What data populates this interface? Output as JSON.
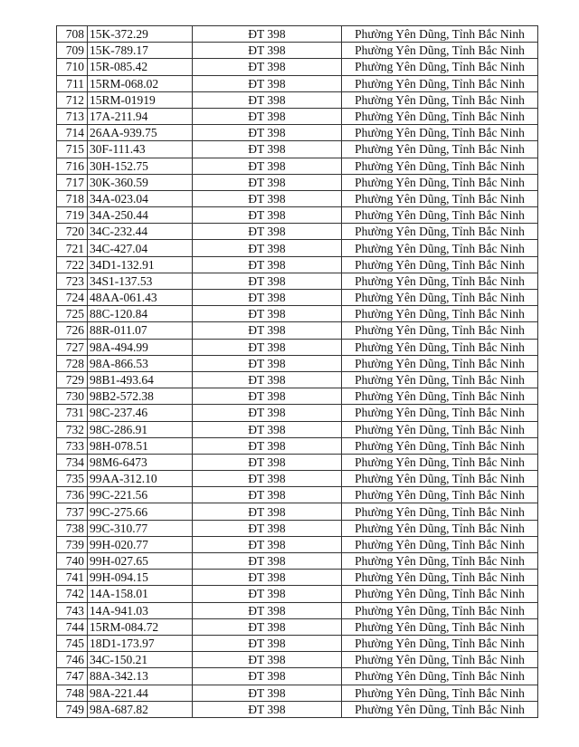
{
  "table": {
    "rows": [
      {
        "no": "708",
        "plate": "15K-372.29",
        "road": "ĐT 398",
        "location": "Phường Yên Dũng, Tỉnh Bắc Ninh"
      },
      {
        "no": "709",
        "plate": "15K-789.17",
        "road": "ĐT 398",
        "location": "Phường Yên Dũng, Tỉnh Bắc Ninh"
      },
      {
        "no": "710",
        "plate": "15R-085.42",
        "road": "ĐT 398",
        "location": "Phường Yên Dũng, Tỉnh Bắc Ninh"
      },
      {
        "no": "711",
        "plate": "15RM-068.02",
        "road": "ĐT 398",
        "location": "Phường Yên Dũng, Tỉnh Bắc Ninh"
      },
      {
        "no": "712",
        "plate": "15RM-01919",
        "road": "ĐT 398",
        "location": "Phường Yên Dũng, Tỉnh Bắc Ninh"
      },
      {
        "no": "713",
        "plate": "17A-211.94",
        "road": "ĐT 398",
        "location": "Phường Yên Dũng, Tỉnh Bắc Ninh"
      },
      {
        "no": "714",
        "plate": "26AA-939.75",
        "road": "ĐT 398",
        "location": "Phường Yên Dũng, Tỉnh Bắc Ninh"
      },
      {
        "no": "715",
        "plate": "30F-111.43",
        "road": "ĐT 398",
        "location": "Phường Yên Dũng, Tỉnh Bắc Ninh"
      },
      {
        "no": "716",
        "plate": "30H-152.75",
        "road": "ĐT 398",
        "location": "Phường Yên Dũng, Tỉnh Bắc Ninh"
      },
      {
        "no": "717",
        "plate": "30K-360.59",
        "road": "ĐT 398",
        "location": "Phường Yên Dũng, Tỉnh Bắc Ninh"
      },
      {
        "no": "718",
        "plate": "34A-023.04",
        "road": "ĐT 398",
        "location": "Phường Yên Dũng, Tỉnh Bắc Ninh"
      },
      {
        "no": "719",
        "plate": "34A-250.44",
        "road": "ĐT 398",
        "location": "Phường Yên Dũng, Tỉnh Bắc Ninh"
      },
      {
        "no": "720",
        "plate": "34C-232.44",
        "road": "ĐT 398",
        "location": "Phường Yên Dũng, Tỉnh Bắc Ninh"
      },
      {
        "no": "721",
        "plate": "34C-427.04",
        "road": "ĐT 398",
        "location": "Phường Yên Dũng, Tỉnh Bắc Ninh"
      },
      {
        "no": "722",
        "plate": "34D1-132.91",
        "road": "ĐT 398",
        "location": "Phường Yên Dũng, Tỉnh Bắc Ninh"
      },
      {
        "no": "723",
        "plate": "34S1-137.53",
        "road": "ĐT 398",
        "location": "Phường Yên Dũng, Tỉnh Bắc Ninh"
      },
      {
        "no": "724",
        "plate": "48AA-061.43",
        "road": "ĐT 398",
        "location": "Phường Yên Dũng, Tỉnh Bắc Ninh"
      },
      {
        "no": "725",
        "plate": "88C-120.84",
        "road": "ĐT 398",
        "location": "Phường Yên Dũng, Tỉnh Bắc Ninh"
      },
      {
        "no": "726",
        "plate": "88R-011.07",
        "road": "ĐT 398",
        "location": "Phường Yên Dũng, Tỉnh Bắc Ninh"
      },
      {
        "no": "727",
        "plate": "98A-494.99",
        "road": "ĐT 398",
        "location": "Phường Yên Dũng, Tỉnh Bắc Ninh"
      },
      {
        "no": "728",
        "plate": "98A-866.53",
        "road": "ĐT 398",
        "location": "Phường Yên Dũng, Tỉnh Bắc Ninh"
      },
      {
        "no": "729",
        "plate": "98B1-493.64",
        "road": "ĐT 398",
        "location": "Phường Yên Dũng, Tỉnh Bắc Ninh"
      },
      {
        "no": "730",
        "plate": "98B2-572.38",
        "road": "ĐT 398",
        "location": "Phường Yên Dũng, Tỉnh Bắc Ninh"
      },
      {
        "no": "731",
        "plate": "98C-237.46",
        "road": "ĐT 398",
        "location": "Phường Yên Dũng, Tỉnh Bắc Ninh"
      },
      {
        "no": "732",
        "plate": "98C-286.91",
        "road": "ĐT 398",
        "location": "Phường Yên Dũng, Tỉnh Bắc Ninh"
      },
      {
        "no": "733",
        "plate": "98H-078.51",
        "road": "ĐT 398",
        "location": "Phường Yên Dũng, Tỉnh Bắc Ninh"
      },
      {
        "no": "734",
        "plate": "98M6-6473",
        "road": "ĐT 398",
        "location": "Phường Yên Dũng, Tỉnh Bắc Ninh"
      },
      {
        "no": "735",
        "plate": "99AA-312.10",
        "road": "ĐT 398",
        "location": "Phường Yên Dũng, Tỉnh Bắc Ninh"
      },
      {
        "no": "736",
        "plate": "99C-221.56",
        "road": "ĐT 398",
        "location": "Phường Yên Dũng, Tỉnh Bắc Ninh"
      },
      {
        "no": "737",
        "plate": "99C-275.66",
        "road": "ĐT 398",
        "location": "Phường Yên Dũng, Tỉnh Bắc Ninh"
      },
      {
        "no": "738",
        "plate": "99C-310.77",
        "road": "ĐT 398",
        "location": "Phường Yên Dũng, Tỉnh Bắc Ninh"
      },
      {
        "no": "739",
        "plate": "99H-020.77",
        "road": "ĐT 398",
        "location": "Phường Yên Dũng, Tỉnh Bắc Ninh"
      },
      {
        "no": "740",
        "plate": "99H-027.65",
        "road": "ĐT 398",
        "location": "Phường Yên Dũng, Tỉnh Bắc Ninh"
      },
      {
        "no": "741",
        "plate": "99H-094.15",
        "road": "ĐT 398",
        "location": "Phường Yên Dũng, Tỉnh Bắc Ninh"
      },
      {
        "no": "742",
        "plate": "14A-158.01",
        "road": "ĐT 398",
        "location": "Phường Yên Dũng, Tỉnh Bắc Ninh"
      },
      {
        "no": "743",
        "plate": "14A-941.03",
        "road": "ĐT 398",
        "location": "Phường Yên Dũng, Tỉnh Bắc Ninh"
      },
      {
        "no": "744",
        "plate": "15RM-084.72",
        "road": "ĐT 398",
        "location": "Phường Yên Dũng, Tỉnh Bắc Ninh"
      },
      {
        "no": "745",
        "plate": "18D1-173.97",
        "road": "ĐT 398",
        "location": "Phường Yên Dũng, Tỉnh Bắc Ninh"
      },
      {
        "no": "746",
        "plate": "34C-150.21",
        "road": "ĐT 398",
        "location": "Phường Yên Dũng, Tỉnh Bắc Ninh"
      },
      {
        "no": "747",
        "plate": "88A-342.13",
        "road": "ĐT 398",
        "location": "Phường Yên Dũng, Tỉnh Bắc Ninh"
      },
      {
        "no": "748",
        "plate": "98A-221.44",
        "road": "ĐT 398",
        "location": "Phường Yên Dũng, Tỉnh Bắc Ninh"
      },
      {
        "no": "749",
        "plate": "98A-687.82",
        "road": "ĐT 398",
        "location": "Phường Yên Dũng, Tỉnh Bắc Ninh"
      }
    ]
  }
}
